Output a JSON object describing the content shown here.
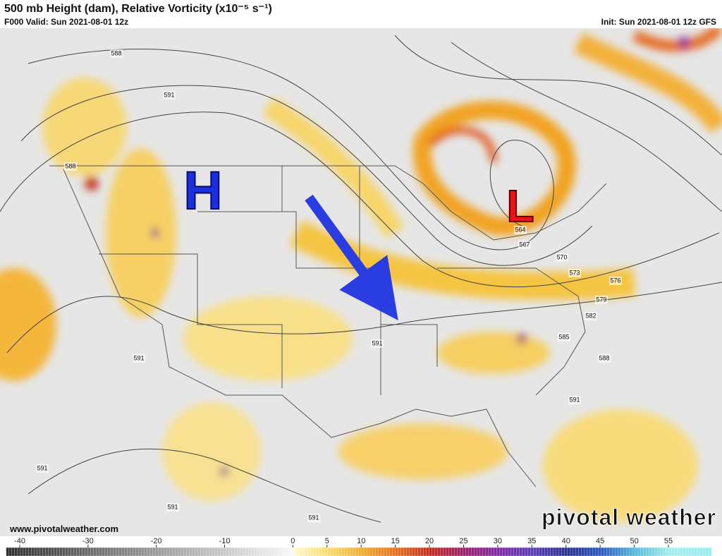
{
  "header": {
    "title": "500 mb Height (dam), Relative Vorticity (x10⁻⁵ s⁻¹)",
    "valid": "F000 Valid: Sun 2021-08-01 12z",
    "init": "Init: Sun 2021-08-01 12z GFS"
  },
  "map": {
    "high_label": "H",
    "low_label": "L",
    "contour_labels": [
      588,
      591,
      588,
      591,
      591,
      564,
      567,
      570,
      573,
      576,
      579,
      582,
      585,
      588,
      591,
      591,
      591,
      591
    ]
  },
  "footer": {
    "website": "www.pivotalweather.com",
    "brand": "pivotal weather"
  },
  "colorbar": {
    "ticks": [
      -40,
      -30,
      -20,
      -10,
      0,
      5,
      10,
      15,
      20,
      25,
      30,
      35,
      40,
      45,
      50,
      55
    ]
  }
}
